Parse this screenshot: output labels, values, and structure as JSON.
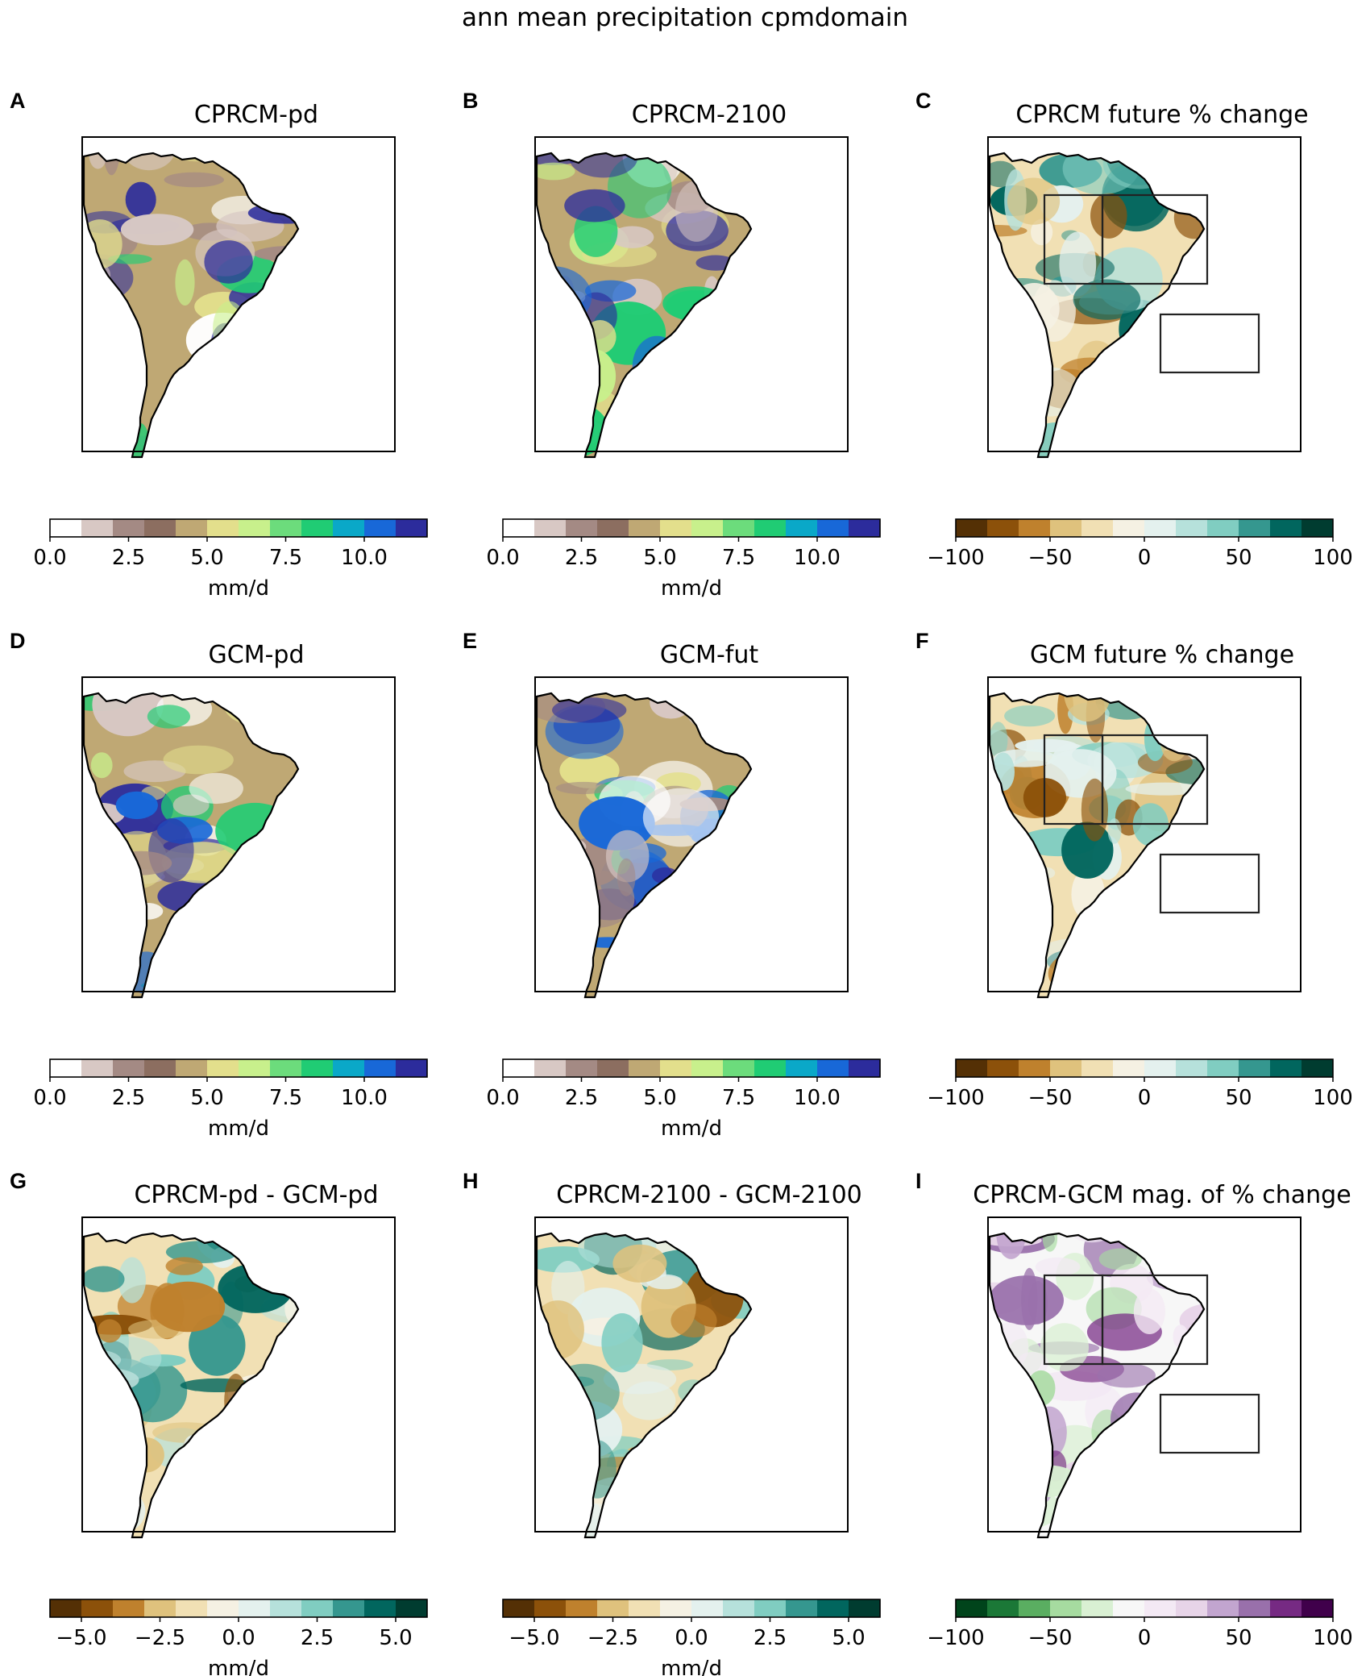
{
  "figure": {
    "title": "ann mean precipitation cpmdomain"
  },
  "palettes": {
    "precip": [
      "#ffffff",
      "#d8c8c4",
      "#a48a84",
      "#8c6e60",
      "#bfa874",
      "#e3df8c",
      "#c8f08c",
      "#6cdc7c",
      "#20cc74",
      "#0aa8c8",
      "#1868d8",
      "#2c2c9c"
    ],
    "brbg": [
      "#543005",
      "#8c510a",
      "#bf812d",
      "#dfc27d",
      "#f1e0b4",
      "#f5f1e3",
      "#e4f1ee",
      "#b6e1db",
      "#80cdc1",
      "#35978f",
      "#01665e",
      "#003c30"
    ],
    "prgn": [
      "#00441b",
      "#1b7837",
      "#5aae61",
      "#a6dba0",
      "#d9f0d3",
      "#f7f7f7",
      "#f3e9f4",
      "#e7d4e8",
      "#c2a5cf",
      "#9970ab",
      "#762a83",
      "#40004b"
    ],
    "map_colors": {
      "precip": [
        "#bfa874",
        "#a48a84",
        "#e3df8c",
        "#c8f08c",
        "#20cc74",
        "#1868d8",
        "#2c2c9c",
        "#ffffff",
        "#d8c8c4"
      ],
      "brbg": [
        "#f1e0b4",
        "#f5f1e3",
        "#dfc27d",
        "#bf812d",
        "#8c510a",
        "#e4f1ee",
        "#b6e1db",
        "#80cdc1",
        "#35978f",
        "#01665e"
      ],
      "prgn": [
        "#f7f7f7",
        "#f3e9f4",
        "#e7d4e8",
        "#c2a5cf",
        "#9970ab",
        "#762a83",
        "#d9f0d3",
        "#a6dba0"
      ]
    }
  },
  "panels": [
    {
      "label": "A",
      "title": "CPRCM-pd",
      "colormap": "precip",
      "boxes": false,
      "colorbar": {
        "ticks": [
          "0.0",
          "2.5",
          "5.0",
          "7.5",
          "10.0"
        ],
        "tick_values": [
          0,
          2.5,
          5,
          7.5,
          10
        ],
        "range": [
          0,
          12
        ],
        "unit": "mm/d"
      }
    },
    {
      "label": "B",
      "title": "CPRCM-2100",
      "colormap": "precip",
      "boxes": false,
      "colorbar": {
        "ticks": [
          "0.0",
          "2.5",
          "5.0",
          "7.5",
          "10.0"
        ],
        "tick_values": [
          0,
          2.5,
          5,
          7.5,
          10
        ],
        "range": [
          0,
          12
        ],
        "unit": "mm/d"
      }
    },
    {
      "label": "C",
      "title": "CPRCM future % change",
      "colormap": "brbg",
      "boxes": true,
      "colorbar": {
        "ticks": [
          "−100",
          "−50",
          "0",
          "50",
          "100"
        ],
        "tick_values": [
          -100,
          -50,
          0,
          50,
          100
        ],
        "range": [
          -100,
          100
        ],
        "unit": ""
      }
    },
    {
      "label": "D",
      "title": "GCM-pd",
      "colormap": "precip",
      "boxes": false,
      "colorbar": {
        "ticks": [
          "0.0",
          "2.5",
          "5.0",
          "7.5",
          "10.0"
        ],
        "tick_values": [
          0,
          2.5,
          5,
          7.5,
          10
        ],
        "range": [
          0,
          12
        ],
        "unit": "mm/d"
      }
    },
    {
      "label": "E",
      "title": "GCM-fut",
      "colormap": "precip",
      "boxes": false,
      "colorbar": {
        "ticks": [
          "0.0",
          "2.5",
          "5.0",
          "7.5",
          "10.0"
        ],
        "tick_values": [
          0,
          2.5,
          5,
          7.5,
          10
        ],
        "range": [
          0,
          12
        ],
        "unit": "mm/d"
      }
    },
    {
      "label": "F",
      "title": "GCM future % change",
      "colormap": "brbg",
      "boxes": true,
      "colorbar": {
        "ticks": [
          "−100",
          "−50",
          "0",
          "50",
          "100"
        ],
        "tick_values": [
          -100,
          -50,
          0,
          50,
          100
        ],
        "range": [
          -100,
          100
        ],
        "unit": ""
      }
    },
    {
      "label": "G",
      "title": "CPRCM-pd - GCM-pd",
      "colormap": "brbg",
      "boxes": false,
      "colorbar": {
        "ticks": [
          "−5.0",
          "−2.5",
          "0.0",
          "2.5",
          "5.0"
        ],
        "tick_values": [
          -5,
          -2.5,
          0,
          2.5,
          5
        ],
        "range": [
          -6,
          6
        ],
        "unit": "mm/d"
      }
    },
    {
      "label": "H",
      "title": "CPRCM-2100 - GCM-2100",
      "colormap": "brbg",
      "boxes": false,
      "colorbar": {
        "ticks": [
          "−5.0",
          "−2.5",
          "0.0",
          "2.5",
          "5.0"
        ],
        "tick_values": [
          -5,
          -2.5,
          0,
          2.5,
          5
        ],
        "range": [
          -6,
          6
        ],
        "unit": "mm/d"
      }
    },
    {
      "label": "I",
      "title": "CPRCM-GCM mag. of % change",
      "colormap": "prgn",
      "boxes": true,
      "colorbar": {
        "ticks": [
          "−100",
          "−50",
          "0",
          "50",
          "100"
        ],
        "tick_values": [
          -100,
          -50,
          0,
          50,
          100
        ],
        "range": [
          -100,
          100
        ],
        "unit": ""
      }
    }
  ],
  "chart_data": {
    "type": "heatmap",
    "title": "ann mean precipitation cpmdomain",
    "panels": [
      {
        "id": "A",
        "title": "CPRCM-pd",
        "variable": "annual mean precipitation",
        "units": "mm/d",
        "colorbar_range": [
          0,
          12
        ],
        "levels": 12
      },
      {
        "id": "B",
        "title": "CPRCM-2100",
        "variable": "annual mean precipitation",
        "units": "mm/d",
        "colorbar_range": [
          0,
          12
        ],
        "levels": 12
      },
      {
        "id": "C",
        "title": "CPRCM future % change",
        "variable": "percent change",
        "units": "%",
        "colorbar_range": [
          -100,
          100
        ],
        "levels": 12
      },
      {
        "id": "D",
        "title": "GCM-pd",
        "variable": "annual mean precipitation",
        "units": "mm/d",
        "colorbar_range": [
          0,
          12
        ],
        "levels": 12
      },
      {
        "id": "E",
        "title": "GCM-fut",
        "variable": "annual mean precipitation",
        "units": "mm/d",
        "colorbar_range": [
          0,
          12
        ],
        "levels": 12
      },
      {
        "id": "F",
        "title": "GCM future % change",
        "variable": "percent change",
        "units": "%",
        "colorbar_range": [
          -100,
          100
        ],
        "levels": 12
      },
      {
        "id": "G",
        "title": "CPRCM-pd - GCM-pd",
        "variable": "difference",
        "units": "mm/d",
        "colorbar_range": [
          -6,
          6
        ],
        "levels": 12
      },
      {
        "id": "H",
        "title": "CPRCM-2100 - GCM-2100",
        "variable": "difference",
        "units": "mm/d",
        "colorbar_range": [
          -6,
          6
        ],
        "levels": 12
      },
      {
        "id": "I",
        "title": "CPRCM-GCM mag. of % change",
        "variable": "magnitude difference of % change",
        "units": "%",
        "colorbar_range": [
          -100,
          100
        ],
        "levels": 12
      }
    ]
  }
}
